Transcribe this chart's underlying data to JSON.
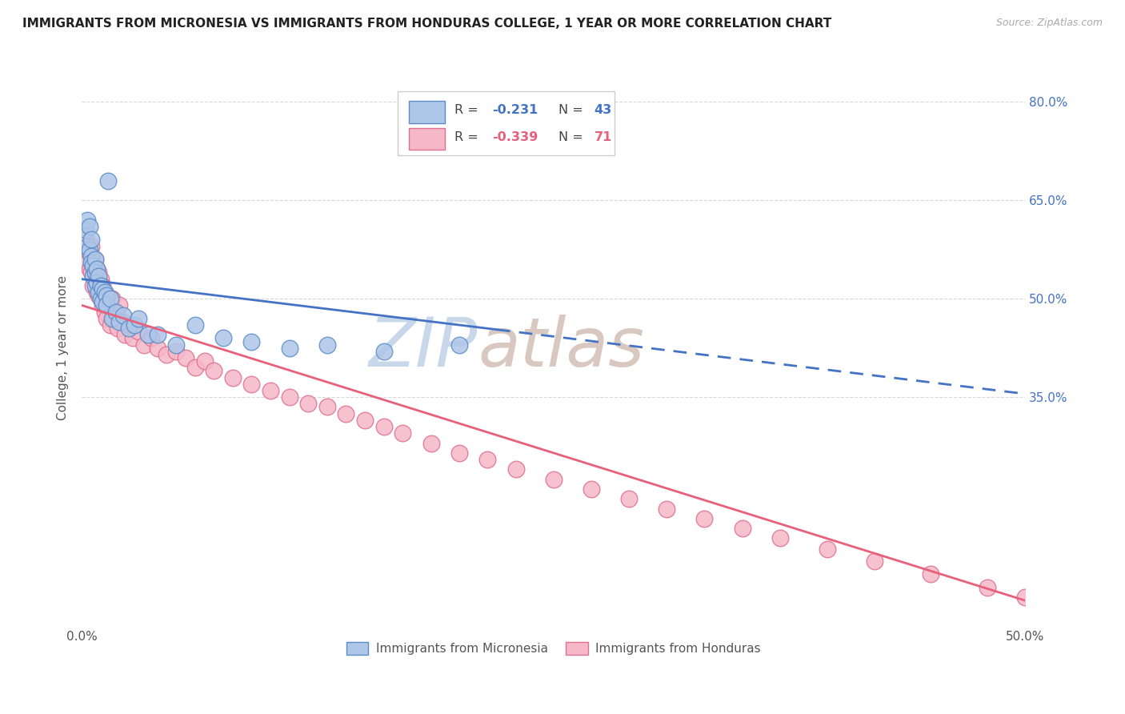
{
  "title": "IMMIGRANTS FROM MICRONESIA VS IMMIGRANTS FROM HONDURAS COLLEGE, 1 YEAR OR MORE CORRELATION CHART",
  "source": "Source: ZipAtlas.com",
  "ylabel": "College, 1 year or more",
  "x_min": 0.0,
  "x_max": 0.5,
  "y_min": 0.0,
  "y_max": 0.85,
  "y_tick_positions": [
    0.35,
    0.5,
    0.65,
    0.8
  ],
  "y_tick_labels": [
    "35.0%",
    "50.0%",
    "65.0%",
    "80.0%"
  ],
  "blue_fill": "#aec6e8",
  "blue_edge": "#5b8dc8",
  "blue_line": "#4472c4",
  "pink_fill": "#f5b8c8",
  "pink_edge": "#e07090",
  "pink_line": "#e8607a",
  "blue_R": -0.231,
  "blue_N": 43,
  "pink_R": -0.339,
  "pink_N": 71,
  "watermark": "ZIPatlas",
  "watermark_zip_color": "#c8d8ea",
  "watermark_atlas_color": "#d8c8c0",
  "grid_color": "#d8d8d8",
  "title_color": "#222222",
  "source_color": "#aaaaaa",
  "axis_color": "#555555",
  "right_axis_color": "#4472c4",
  "title_fontsize": 11,
  "micronesia_x": [
    0.002,
    0.003,
    0.003,
    0.004,
    0.004,
    0.005,
    0.005,
    0.005,
    0.006,
    0.006,
    0.007,
    0.007,
    0.007,
    0.008,
    0.008,
    0.009,
    0.009,
    0.01,
    0.01,
    0.011,
    0.011,
    0.012,
    0.013,
    0.013,
    0.014,
    0.015,
    0.016,
    0.018,
    0.02,
    0.022,
    0.025,
    0.028,
    0.03,
    0.035,
    0.04,
    0.05,
    0.06,
    0.075,
    0.09,
    0.11,
    0.13,
    0.16,
    0.2
  ],
  "micronesia_y": [
    0.605,
    0.62,
    0.58,
    0.61,
    0.575,
    0.59,
    0.565,
    0.555,
    0.55,
    0.535,
    0.56,
    0.54,
    0.52,
    0.545,
    0.525,
    0.535,
    0.51,
    0.52,
    0.5,
    0.515,
    0.495,
    0.51,
    0.505,
    0.49,
    0.68,
    0.5,
    0.47,
    0.48,
    0.465,
    0.475,
    0.455,
    0.46,
    0.47,
    0.445,
    0.445,
    0.43,
    0.46,
    0.44,
    0.435,
    0.425,
    0.43,
    0.42,
    0.43
  ],
  "honduras_x": [
    0.002,
    0.003,
    0.003,
    0.004,
    0.004,
    0.005,
    0.005,
    0.006,
    0.006,
    0.007,
    0.007,
    0.008,
    0.008,
    0.009,
    0.009,
    0.01,
    0.01,
    0.011,
    0.011,
    0.012,
    0.012,
    0.013,
    0.013,
    0.014,
    0.015,
    0.015,
    0.016,
    0.017,
    0.018,
    0.019,
    0.02,
    0.022,
    0.023,
    0.025,
    0.027,
    0.03,
    0.033,
    0.037,
    0.04,
    0.045,
    0.05,
    0.055,
    0.06,
    0.065,
    0.07,
    0.08,
    0.09,
    0.1,
    0.11,
    0.12,
    0.13,
    0.14,
    0.15,
    0.16,
    0.17,
    0.185,
    0.2,
    0.215,
    0.23,
    0.25,
    0.27,
    0.29,
    0.31,
    0.33,
    0.35,
    0.37,
    0.395,
    0.42,
    0.45,
    0.48,
    0.5
  ],
  "honduras_y": [
    0.59,
    0.575,
    0.555,
    0.57,
    0.545,
    0.58,
    0.54,
    0.555,
    0.52,
    0.56,
    0.535,
    0.545,
    0.51,
    0.54,
    0.505,
    0.53,
    0.5,
    0.52,
    0.49,
    0.51,
    0.48,
    0.505,
    0.47,
    0.495,
    0.49,
    0.46,
    0.5,
    0.47,
    0.48,
    0.455,
    0.49,
    0.465,
    0.445,
    0.46,
    0.44,
    0.45,
    0.43,
    0.44,
    0.425,
    0.415,
    0.42,
    0.41,
    0.395,
    0.405,
    0.39,
    0.38,
    0.37,
    0.36,
    0.35,
    0.34,
    0.335,
    0.325,
    0.315,
    0.305,
    0.295,
    0.28,
    0.265,
    0.255,
    0.24,
    0.225,
    0.21,
    0.195,
    0.18,
    0.165,
    0.15,
    0.135,
    0.118,
    0.1,
    0.08,
    0.06,
    0.045
  ],
  "blue_line_x0": 0.0,
  "blue_line_y0": 0.53,
  "blue_line_x1": 0.5,
  "blue_line_y1": 0.355,
  "blue_line_dash_start": 0.22,
  "pink_line_x0": 0.0,
  "pink_line_y0": 0.49,
  "pink_line_x1": 0.5,
  "pink_line_y1": 0.04
}
